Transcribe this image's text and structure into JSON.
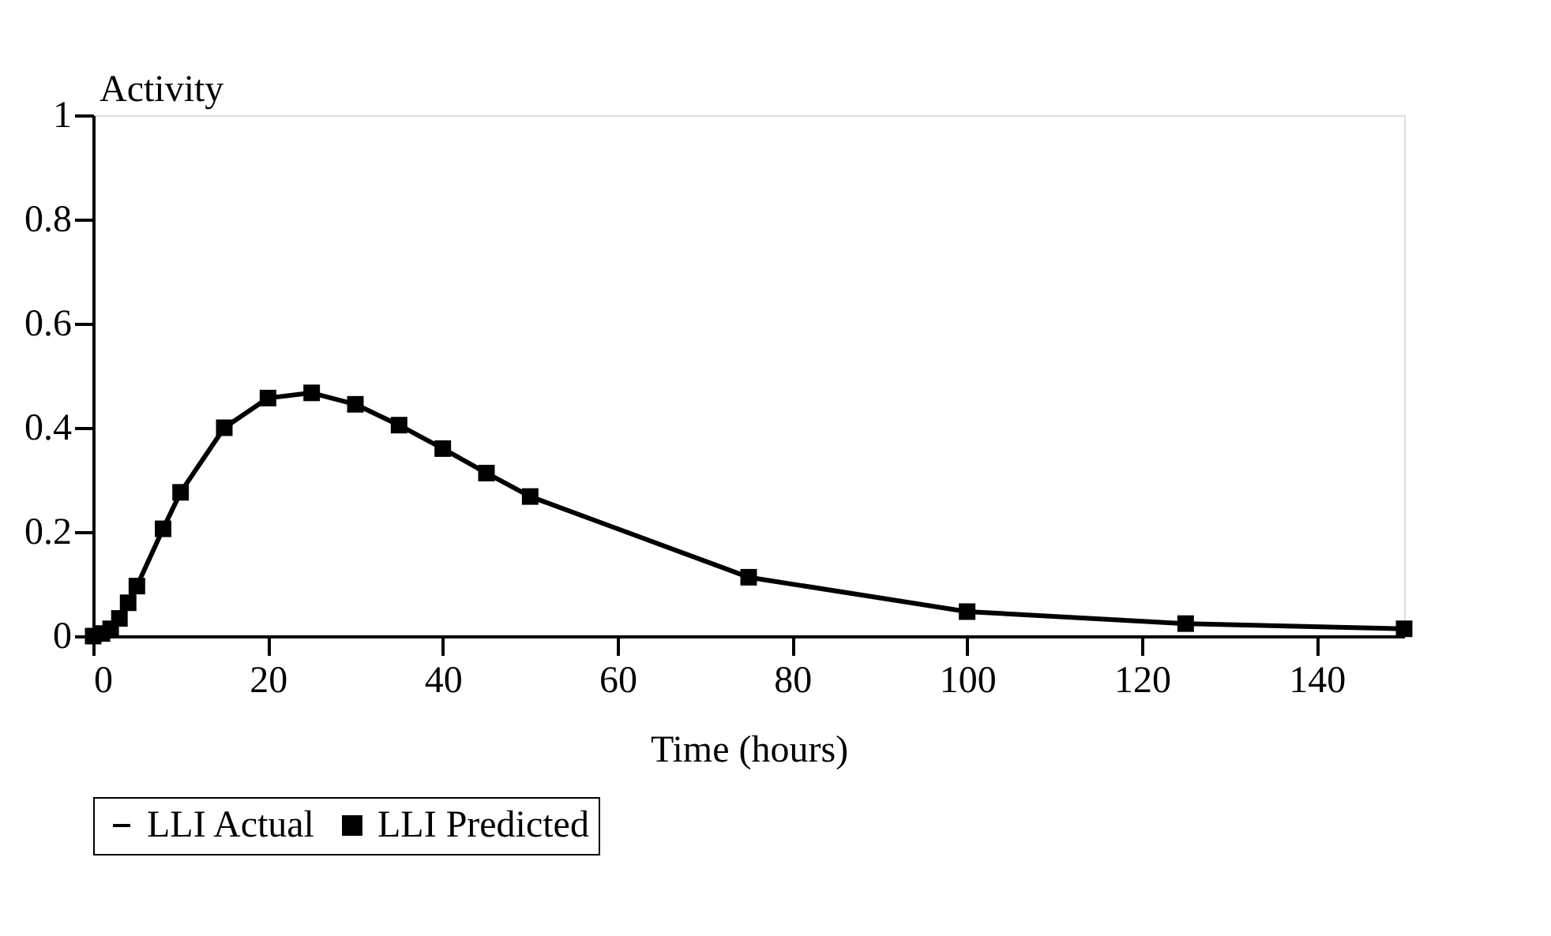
{
  "chart_data": {
    "type": "line",
    "ylabel": "Activity",
    "xlabel": "Time (hours)",
    "x": [
      0,
      1,
      2,
      3,
      4,
      5,
      8,
      10,
      15,
      20,
      25,
      30,
      35,
      40,
      45,
      50,
      75,
      100,
      125,
      150
    ],
    "series": [
      {
        "name": "LLI Actual",
        "color": "#000000",
        "marker": "none",
        "values": [
          0,
          0.005,
          0.014,
          0.034,
          0.064,
          0.096,
          0.206,
          0.276,
          0.4,
          0.457,
          0.467,
          0.445,
          0.405,
          0.36,
          0.313,
          0.268,
          0.113,
          0.047,
          0.024,
          0.014
        ]
      },
      {
        "name": "LLI Predicted",
        "type": "scatter",
        "color": "#000000",
        "marker": "square",
        "values": [
          0,
          0.005,
          0.014,
          0.034,
          0.064,
          0.096,
          0.206,
          0.276,
          0.4,
          0.457,
          0.467,
          0.445,
          0.405,
          0.36,
          0.313,
          0.268,
          0.113,
          0.047,
          0.024,
          0.014
        ]
      }
    ],
    "xlim": [
      0,
      150
    ],
    "xticks": [
      0,
      20,
      40,
      60,
      80,
      100,
      120,
      140
    ],
    "ylim": [
      0,
      1
    ],
    "yticks": [
      0,
      0.2,
      0.4,
      0.6,
      0.8,
      1
    ],
    "grid": false,
    "legend": "bottom"
  }
}
